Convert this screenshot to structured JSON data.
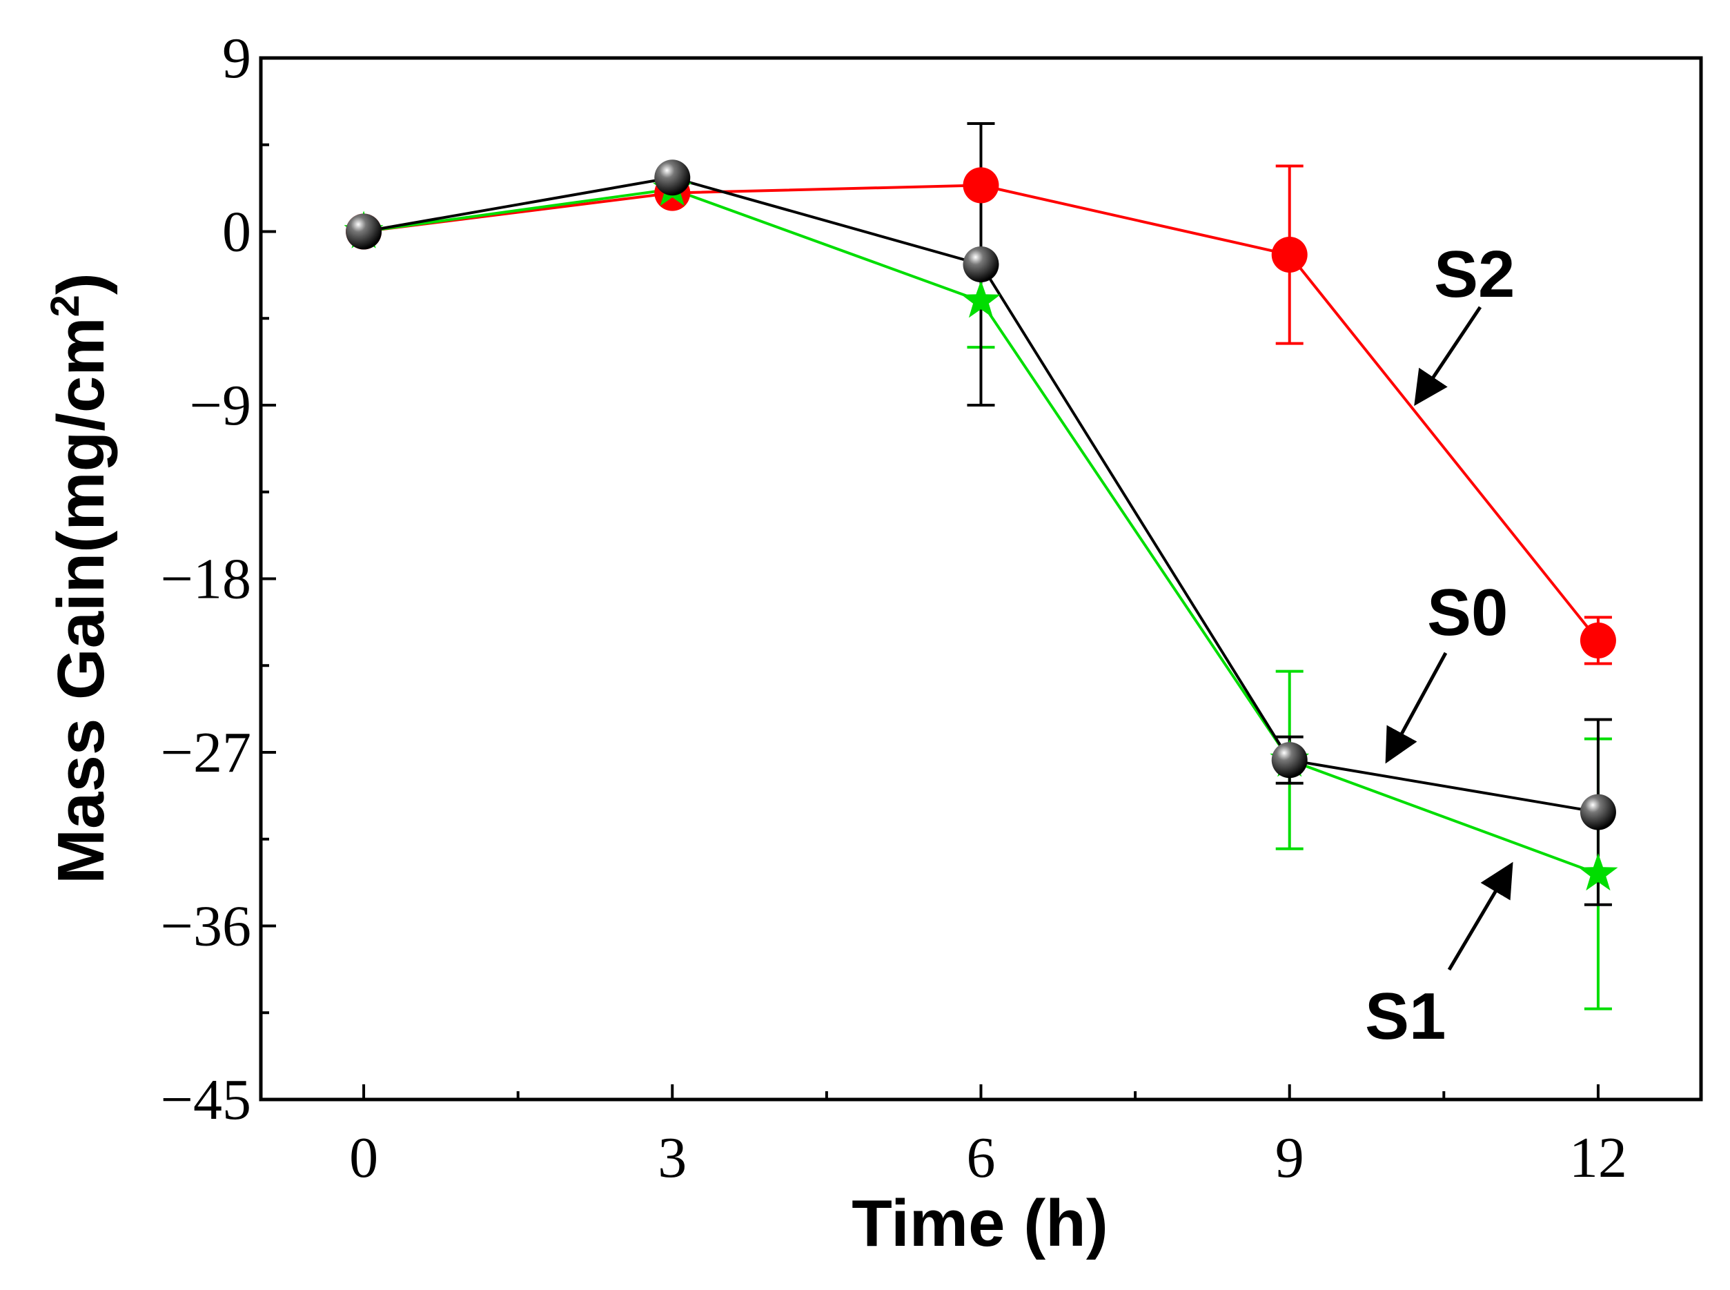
{
  "chart_data": {
    "type": "line",
    "xlabel": "Time (h)",
    "ylabel": "Mass Gain(mg/cm",
    "ylabel_sup": "2",
    "ylabel_close": ")",
    "xlim": [
      -1.0,
      13.0
    ],
    "ylim": [
      -45,
      9
    ],
    "x_ticks": [
      0,
      3,
      6,
      9,
      12
    ],
    "x_tick_labels": [
      "0",
      "3",
      "6",
      "9",
      "12"
    ],
    "y_ticks": [
      9,
      0,
      -9,
      -18,
      -27,
      -36,
      -45
    ],
    "y_tick_labels": [
      "9",
      "0",
      "−9",
      "−18",
      "−27",
      "−36",
      "−45"
    ],
    "grid": false,
    "x": [
      0,
      3,
      6,
      9,
      12
    ],
    "series": [
      {
        "name": "S2",
        "color": "#ff0000",
        "marker": "circle",
        "values": [
          0,
          2.0,
          2.4,
          -1.2,
          -21.2
        ],
        "errors": [
          0,
          0,
          0,
          4.6,
          1.2
        ]
      },
      {
        "name": "S1",
        "color": "#00dd00",
        "marker": "star",
        "values": [
          0,
          2.2,
          -3.6,
          -27.4,
          -33.3
        ],
        "errors": [
          0,
          0,
          2.4,
          4.6,
          7.0
        ]
      },
      {
        "name": "S0",
        "color": "#000000",
        "marker": "sphere",
        "values": [
          0,
          2.8,
          -1.7,
          -27.4,
          -30.1
        ],
        "errors": [
          0,
          0,
          7.3,
          1.2,
          4.8
        ]
      }
    ],
    "annotations": [
      {
        "text": "S2",
        "series": "S2"
      },
      {
        "text": "S0",
        "series": "S0"
      },
      {
        "text": "S1",
        "series": "S1"
      }
    ]
  }
}
